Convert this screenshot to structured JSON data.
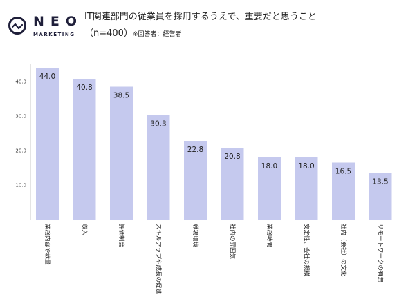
{
  "logo": {
    "name": "NEO",
    "sub": "MARKETING"
  },
  "header": {
    "title": "IT関連部門の従業員を採用するうえで、重要だと思うこと",
    "subtitle": "（n=400）",
    "note": "※回答者：経営者"
  },
  "colors": {
    "bar": "#c5c9ee",
    "ink": "#1f1f3a"
  },
  "chart_data": {
    "type": "bar",
    "categories": [
      "業務内容や裁量",
      "収入",
      "評価制度",
      "スキルアップや成長の促進",
      "職場環境",
      "社内の雰囲気",
      "業務時間",
      "安定性、会社の規模",
      "社内（会社）の文化",
      "リモートワークの有無"
    ],
    "values": [
      44.0,
      40.8,
      38.5,
      30.3,
      22.8,
      20.8,
      18.0,
      18.0,
      16.5,
      13.5
    ],
    "value_labels": [
      "44.0",
      "40.8",
      "38.5",
      "30.3",
      "22.8",
      "20.8",
      "18.0",
      "18.0",
      "16.5",
      "13.5"
    ],
    "yticks": [
      0,
      10,
      20,
      30,
      40
    ],
    "ytick_labels": [
      "-",
      "10.0",
      "20.0",
      "30.0",
      "40.0"
    ],
    "ylim": [
      0,
      45
    ],
    "grid": false,
    "title": "",
    "xlabel": "",
    "ylabel": ""
  }
}
